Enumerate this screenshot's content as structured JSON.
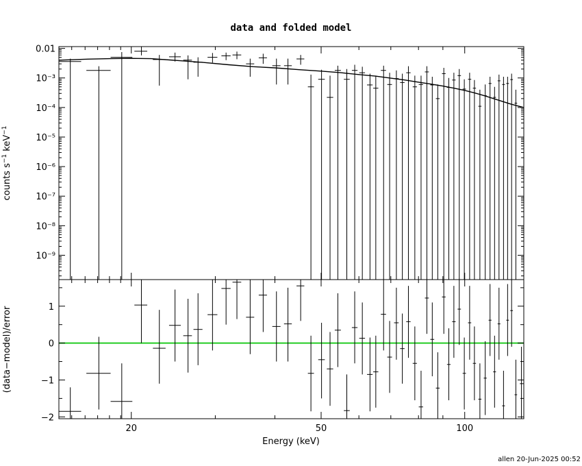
{
  "chart_data": {
    "title": "data and folded model",
    "footer": "allen 20-Jun-2025 00:52",
    "xlabel": "Energy (keV)",
    "xscale": "log",
    "xlim": [
      14.1,
      133.0
    ],
    "x_ticks": [
      {
        "value": 20,
        "label": "20"
      },
      {
        "value": 50,
        "label": "50"
      },
      {
        "value": 100,
        "label": "100"
      }
    ],
    "top_panel": {
      "type": "scatter",
      "ylabel": "counts s⁻¹ keV⁻¹",
      "yscale": "log",
      "ylim": [
        1.5e-10,
        0.0115
      ],
      "y_ticks": [
        {
          "value": 0.01,
          "label": "0.01"
        },
        {
          "value": 0.001,
          "label": "10⁻³"
        },
        {
          "value": 0.0001,
          "label": "10⁻⁴"
        },
        {
          "value": 1e-05,
          "label": "10⁻⁵"
        },
        {
          "value": 1e-06,
          "label": "10⁻⁶"
        },
        {
          "value": 1e-07,
          "label": "10⁻⁷"
        },
        {
          "value": 1e-08,
          "label": "10⁻⁸"
        },
        {
          "value": 1e-09,
          "label": "10⁻⁹"
        }
      ],
      "model_points": [
        [
          14.1,
          0.004
        ],
        [
          16,
          0.0043
        ],
        [
          18,
          0.0045
        ],
        [
          20,
          0.0046
        ],
        [
          22,
          0.0045
        ],
        [
          25,
          0.0039
        ],
        [
          28,
          0.0034
        ],
        [
          32,
          0.0028
        ],
        [
          36,
          0.0024
        ],
        [
          40,
          0.0022
        ],
        [
          45,
          0.0019
        ],
        [
          50,
          0.0017
        ],
        [
          55,
          0.0015
        ],
        [
          60,
          0.0013
        ],
        [
          65,
          0.00115
        ],
        [
          70,
          0.00098
        ],
        [
          75,
          0.00085
        ],
        [
          80,
          0.00072
        ],
        [
          85,
          0.00062
        ],
        [
          90,
          0.00053
        ],
        [
          95,
          0.00045
        ],
        [
          100,
          0.00038
        ],
        [
          105,
          0.00031
        ],
        [
          110,
          0.00025
        ],
        [
          115,
          0.0002
        ],
        [
          120,
          0.00016
        ],
        [
          125,
          0.00013
        ],
        [
          133,
          0.0001
        ]
      ],
      "data_points": [
        {
          "x": 14.9,
          "xlo": 14.1,
          "xhi": 15.7,
          "y": 0.0036,
          "ylo": 1.5e-10,
          "yhi": 0.0045
        },
        {
          "x": 17.1,
          "xlo": 16.1,
          "xhi": 18.1,
          "y": 0.0018,
          "ylo": 1.5e-10,
          "yhi": 0.0025
        },
        {
          "x": 19.1,
          "xlo": 18.1,
          "xhi": 20.1,
          "y": 0.005,
          "ylo": 1.5e-10,
          "yhi": 0.0075
        },
        {
          "x": 21.0,
          "xlo": 20.3,
          "xhi": 21.6,
          "y": 0.008,
          "ylo": 0.0058,
          "yhi": 0.0115
        },
        {
          "x": 22.9,
          "xlo": 22.2,
          "xhi": 23.6,
          "y": 0.0042,
          "ylo": 0.00055,
          "yhi": 0.006
        },
        {
          "x": 24.7,
          "xlo": 24.0,
          "xhi": 25.4,
          "y": 0.0052,
          "ylo": 0.0036,
          "yhi": 0.0072
        },
        {
          "x": 26.3,
          "xlo": 25.7,
          "xhi": 26.8,
          "y": 0.004,
          "ylo": 0.0009,
          "yhi": 0.0058
        },
        {
          "x": 27.6,
          "xlo": 27.0,
          "xhi": 28.2,
          "y": 0.0034,
          "ylo": 0.0011,
          "yhi": 0.005
        },
        {
          "x": 29.6,
          "xlo": 28.9,
          "xhi": 30.3,
          "y": 0.005,
          "ylo": 0.0033,
          "yhi": 0.007
        },
        {
          "x": 31.6,
          "xlo": 30.9,
          "xhi": 32.3,
          "y": 0.0056,
          "ylo": 0.004,
          "yhi": 0.0072
        },
        {
          "x": 33.3,
          "xlo": 32.6,
          "xhi": 34.0,
          "y": 0.006,
          "ylo": 0.0043,
          "yhi": 0.0078
        },
        {
          "x": 35.5,
          "xlo": 34.8,
          "xhi": 36.2,
          "y": 0.003,
          "ylo": 0.0011,
          "yhi": 0.0045
        },
        {
          "x": 37.8,
          "xlo": 37.0,
          "xhi": 38.5,
          "y": 0.0048,
          "ylo": 0.003,
          "yhi": 0.0066
        },
        {
          "x": 40.3,
          "xlo": 39.5,
          "xhi": 41.1,
          "y": 0.0026,
          "ylo": 0.0006,
          "yhi": 0.0045
        },
        {
          "x": 42.6,
          "xlo": 41.8,
          "xhi": 43.4,
          "y": 0.0026,
          "ylo": 0.0006,
          "yhi": 0.0045
        },
        {
          "x": 45.3,
          "xlo": 44.4,
          "xhi": 46.1,
          "y": 0.0044,
          "ylo": 0.0028,
          "yhi": 0.006
        },
        {
          "x": 47.6,
          "xlo": 46.9,
          "xhi": 48.3,
          "y": 0.0005,
          "ylo": 1.5e-10,
          "yhi": 0.0013
        },
        {
          "x": 50.1,
          "xlo": 49.3,
          "xhi": 50.9,
          "y": 0.0009,
          "ylo": 1.5e-10,
          "yhi": 0.0019
        },
        {
          "x": 52.2,
          "xlo": 51.4,
          "xhi": 53.0,
          "y": 0.00022,
          "ylo": 1.5e-10,
          "yhi": 0.0012
        },
        {
          "x": 54.2,
          "xlo": 53.4,
          "xhi": 55.0,
          "y": 0.0018,
          "ylo": 1.5e-10,
          "yhi": 0.0026
        },
        {
          "x": 56.6,
          "xlo": 55.8,
          "xhi": 57.4,
          "y": 0.0009,
          "ylo": 1.5e-10,
          "yhi": 0.002
        },
        {
          "x": 58.8,
          "xlo": 58.0,
          "xhi": 59.6,
          "y": 0.0018,
          "ylo": 1.5e-10,
          "yhi": 0.0028
        },
        {
          "x": 61.0,
          "xlo": 60.1,
          "xhi": 61.8,
          "y": 0.0015,
          "ylo": 1.5e-10,
          "yhi": 0.0024
        },
        {
          "x": 63.3,
          "xlo": 62.4,
          "xhi": 64.1,
          "y": 0.00058,
          "ylo": 1.5e-10,
          "yhi": 0.0014
        },
        {
          "x": 65.1,
          "xlo": 64.3,
          "xhi": 65.9,
          "y": 0.00045,
          "ylo": 1.5e-10,
          "yhi": 0.0012
        },
        {
          "x": 67.6,
          "xlo": 66.7,
          "xhi": 68.4,
          "y": 0.0018,
          "ylo": 1.5e-10,
          "yhi": 0.0026
        },
        {
          "x": 69.6,
          "xlo": 68.8,
          "xhi": 70.4,
          "y": 0.0006,
          "ylo": 1.5e-10,
          "yhi": 0.0015
        },
        {
          "x": 71.9,
          "xlo": 71.1,
          "xhi": 72.7,
          "y": 0.00095,
          "ylo": 1.5e-10,
          "yhi": 0.0018
        },
        {
          "x": 74.0,
          "xlo": 73.2,
          "xhi": 74.8,
          "y": 0.0007,
          "ylo": 1.5e-10,
          "yhi": 0.0014
        },
        {
          "x": 76.2,
          "xlo": 75.4,
          "xhi": 77.0,
          "y": 0.0015,
          "ylo": 1.5e-10,
          "yhi": 0.0025
        },
        {
          "x": 78.6,
          "xlo": 77.8,
          "xhi": 79.4,
          "y": 0.0005,
          "ylo": 1.5e-10,
          "yhi": 0.0012
        },
        {
          "x": 81.0,
          "xlo": 80.1,
          "xhi": 81.8,
          "y": 0.0006,
          "ylo": 1.5e-10,
          "yhi": 0.0012
        },
        {
          "x": 83.3,
          "xlo": 82.5,
          "xhi": 84.1,
          "y": 0.0016,
          "ylo": 1.5e-10,
          "yhi": 0.0025
        },
        {
          "x": 85.5,
          "xlo": 84.7,
          "xhi": 86.3,
          "y": 0.00058,
          "ylo": 1.5e-10,
          "yhi": 0.0011
        },
        {
          "x": 87.8,
          "xlo": 87.0,
          "xhi": 88.6,
          "y": 0.0002,
          "ylo": 1.5e-10,
          "yhi": 0.0006
        },
        {
          "x": 90.4,
          "xlo": 89.6,
          "xhi": 91.2,
          "y": 0.0014,
          "ylo": 1.5e-10,
          "yhi": 0.0022
        },
        {
          "x": 92.6,
          "xlo": 91.8,
          "xhi": 93.4,
          "y": 0.00048,
          "ylo": 1.5e-10,
          "yhi": 0.001
        },
        {
          "x": 94.9,
          "xlo": 94.1,
          "xhi": 95.7,
          "y": 0.00085,
          "ylo": 1.5e-10,
          "yhi": 0.0015
        },
        {
          "x": 97.4,
          "xlo": 96.6,
          "xhi": 98.2,
          "y": 0.0012,
          "ylo": 1.5e-10,
          "yhi": 0.002
        },
        {
          "x": 99.8,
          "xlo": 99.0,
          "xhi": 100.6,
          "y": 0.00042,
          "ylo": 1.5e-10,
          "yhi": 0.0009
        },
        {
          "x": 102.4,
          "xlo": 101.6,
          "xhi": 103.2,
          "y": 0.0009,
          "ylo": 1.5e-10,
          "yhi": 0.0015
        },
        {
          "x": 104.8,
          "xlo": 104.0,
          "xhi": 105.6,
          "y": 0.00045,
          "ylo": 1.5e-10,
          "yhi": 0.00085
        },
        {
          "x": 107.6,
          "xlo": 106.8,
          "xhi": 108.4,
          "y": 0.00011,
          "ylo": 1.5e-10,
          "yhi": 0.0004
        },
        {
          "x": 110.4,
          "xlo": 109.6,
          "xhi": 111.2,
          "y": 0.00025,
          "ylo": 1.5e-10,
          "yhi": 0.0006
        },
        {
          "x": 113.0,
          "xlo": 112.2,
          "xhi": 113.8,
          "y": 0.00065,
          "ylo": 1.5e-10,
          "yhi": 0.0011
        },
        {
          "x": 115.5,
          "xlo": 114.7,
          "xhi": 116.3,
          "y": 0.00022,
          "ylo": 1.5e-10,
          "yhi": 0.0005
        },
        {
          "x": 118.0,
          "xlo": 117.2,
          "xhi": 118.8,
          "y": 0.0008,
          "ylo": 1.5e-10,
          "yhi": 0.0013
        },
        {
          "x": 120.6,
          "xlo": 119.8,
          "xhi": 121.4,
          "y": 0.0006,
          "ylo": 1.5e-10,
          "yhi": 0.0011
        },
        {
          "x": 123.0,
          "xlo": 122.2,
          "xhi": 123.8,
          "y": 0.00065,
          "ylo": 1.5e-10,
          "yhi": 0.0011
        },
        {
          "x": 125.4,
          "xlo": 124.6,
          "xhi": 126.2,
          "y": 0.00088,
          "ylo": 1.5e-10,
          "yhi": 0.0014
        },
        {
          "x": 128.0,
          "xlo": 127.2,
          "xhi": 128.8,
          "y": 0.00014,
          "ylo": 1.5e-10,
          "yhi": 0.0004
        }
      ]
    },
    "bottom_panel": {
      "type": "scatter",
      "ylabel": "(data−model)/error",
      "ylim": [
        -2.05,
        1.72
      ],
      "y_ticks": [
        {
          "value": -2,
          "label": "−2"
        },
        {
          "value": -1,
          "label": "−1"
        },
        {
          "value": 0,
          "label": "0"
        },
        {
          "value": 1,
          "label": "1"
        }
      ],
      "zero_line_color": "#22cc22",
      "residuals": [
        {
          "x": 14.9,
          "xlo": 14.1,
          "xhi": 15.7,
          "y": -1.85,
          "ylo": -2.05,
          "yhi": -1.2
        },
        {
          "x": 17.1,
          "xlo": 16.1,
          "xhi": 18.1,
          "y": -0.82,
          "ylo": -1.8,
          "yhi": 0.17
        },
        {
          "x": 19.1,
          "xlo": 18.1,
          "xhi": 20.1,
          "y": -1.58,
          "ylo": -2.05,
          "yhi": -0.55
        },
        {
          "x": 21.0,
          "xlo": 20.3,
          "xhi": 21.6,
          "y": 1.03,
          "ylo": 0.0,
          "yhi": 1.72
        },
        {
          "x": 22.9,
          "xlo": 22.2,
          "xhi": 23.6,
          "y": -0.14,
          "ylo": -1.1,
          "yhi": 0.9
        },
        {
          "x": 24.7,
          "xlo": 24.0,
          "xhi": 25.4,
          "y": 0.48,
          "ylo": -0.5,
          "yhi": 1.45
        },
        {
          "x": 26.3,
          "xlo": 25.7,
          "xhi": 26.8,
          "y": 0.2,
          "ylo": -0.8,
          "yhi": 1.2
        },
        {
          "x": 27.6,
          "xlo": 27.0,
          "xhi": 28.2,
          "y": 0.37,
          "ylo": -0.6,
          "yhi": 1.35
        },
        {
          "x": 29.6,
          "xlo": 28.9,
          "xhi": 30.3,
          "y": 0.77,
          "ylo": -0.2,
          "yhi": 1.72
        },
        {
          "x": 31.6,
          "xlo": 30.9,
          "xhi": 32.3,
          "y": 1.48,
          "ylo": 0.5,
          "yhi": 1.72
        },
        {
          "x": 33.3,
          "xlo": 32.6,
          "xhi": 34.0,
          "y": 1.65,
          "ylo": 0.65,
          "yhi": 1.72
        },
        {
          "x": 35.5,
          "xlo": 34.8,
          "xhi": 36.2,
          "y": 0.7,
          "ylo": -0.3,
          "yhi": 1.72
        },
        {
          "x": 37.8,
          "xlo": 37.0,
          "xhi": 38.5,
          "y": 1.3,
          "ylo": 0.3,
          "yhi": 1.72
        },
        {
          "x": 40.3,
          "xlo": 39.5,
          "xhi": 41.1,
          "y": 0.45,
          "ylo": -0.5,
          "yhi": 1.4
        },
        {
          "x": 42.6,
          "xlo": 41.8,
          "xhi": 43.4,
          "y": 0.52,
          "ylo": -0.5,
          "yhi": 1.5
        },
        {
          "x": 45.3,
          "xlo": 44.4,
          "xhi": 46.1,
          "y": 1.55,
          "ylo": 0.6,
          "yhi": 1.72
        },
        {
          "x": 47.6,
          "xlo": 46.9,
          "xhi": 48.3,
          "y": -0.82,
          "ylo": -1.85,
          "yhi": 0.2
        },
        {
          "x": 50.1,
          "xlo": 49.3,
          "xhi": 50.9,
          "y": -0.45,
          "ylo": -1.5,
          "yhi": 0.55
        },
        {
          "x": 52.2,
          "xlo": 51.4,
          "xhi": 53.0,
          "y": -0.7,
          "ylo": -1.7,
          "yhi": 0.3
        },
        {
          "x": 54.2,
          "xlo": 53.4,
          "xhi": 55.0,
          "y": 0.35,
          "ylo": -0.65,
          "yhi": 1.35
        },
        {
          "x": 56.6,
          "xlo": 55.8,
          "xhi": 57.4,
          "y": -1.83,
          "ylo": -2.05,
          "yhi": -0.85
        },
        {
          "x": 58.8,
          "xlo": 58.0,
          "xhi": 59.6,
          "y": 0.42,
          "ylo": -0.55,
          "yhi": 1.4
        },
        {
          "x": 61.0,
          "xlo": 60.1,
          "xhi": 61.8,
          "y": 0.13,
          "ylo": -0.85,
          "yhi": 1.1
        },
        {
          "x": 63.3,
          "xlo": 62.4,
          "xhi": 64.1,
          "y": -0.85,
          "ylo": -1.85,
          "yhi": 0.15
        },
        {
          "x": 65.1,
          "xlo": 64.3,
          "xhi": 65.9,
          "y": -0.78,
          "ylo": -1.75,
          "yhi": 0.2
        },
        {
          "x": 67.6,
          "xlo": 66.7,
          "xhi": 68.4,
          "y": 0.78,
          "ylo": -0.2,
          "yhi": 1.72
        },
        {
          "x": 69.6,
          "xlo": 68.8,
          "xhi": 70.4,
          "y": -0.38,
          "ylo": -1.35,
          "yhi": 0.6
        },
        {
          "x": 71.9,
          "xlo": 71.1,
          "xhi": 72.7,
          "y": 0.55,
          "ylo": -0.45,
          "yhi": 1.5
        },
        {
          "x": 74.0,
          "xlo": 73.2,
          "xhi": 74.8,
          "y": -0.15,
          "ylo": -1.1,
          "yhi": 0.8
        },
        {
          "x": 76.2,
          "xlo": 75.4,
          "xhi": 77.0,
          "y": 0.58,
          "ylo": -0.4,
          "yhi": 1.55
        },
        {
          "x": 78.6,
          "xlo": 77.8,
          "xhi": 79.4,
          "y": -0.55,
          "ylo": -1.55,
          "yhi": 0.45
        },
        {
          "x": 81.0,
          "xlo": 80.1,
          "xhi": 81.8,
          "y": -1.73,
          "ylo": -2.05,
          "yhi": -0.75
        },
        {
          "x": 83.3,
          "xlo": 82.5,
          "xhi": 84.1,
          "y": 1.22,
          "ylo": 0.25,
          "yhi": 1.72
        },
        {
          "x": 85.5,
          "xlo": 84.7,
          "xhi": 86.3,
          "y": 0.1,
          "ylo": -0.9,
          "yhi": 1.1
        },
        {
          "x": 87.8,
          "xlo": 87.0,
          "xhi": 88.6,
          "y": -1.22,
          "ylo": -2.05,
          "yhi": -0.25
        },
        {
          "x": 90.4,
          "xlo": 89.6,
          "xhi": 91.2,
          "y": 1.25,
          "ylo": 0.25,
          "yhi": 1.72
        },
        {
          "x": 92.6,
          "xlo": 91.8,
          "xhi": 93.4,
          "y": -0.58,
          "ylo": -1.55,
          "yhi": 0.4
        },
        {
          "x": 94.9,
          "xlo": 94.1,
          "xhi": 95.7,
          "y": 0.58,
          "ylo": -0.4,
          "yhi": 1.55
        },
        {
          "x": 97.4,
          "xlo": 96.6,
          "xhi": 98.2,
          "y": 0.92,
          "ylo": -0.05,
          "yhi": 1.72
        },
        {
          "x": 99.8,
          "xlo": 99.0,
          "xhi": 100.6,
          "y": -0.82,
          "ylo": -1.8,
          "yhi": 0.15
        },
        {
          "x": 102.4,
          "xlo": 101.6,
          "xhi": 103.2,
          "y": 0.55,
          "ylo": -0.45,
          "yhi": 1.55
        },
        {
          "x": 104.8,
          "xlo": 104.0,
          "xhi": 105.6,
          "y": -0.55,
          "ylo": -1.55,
          "yhi": 0.45
        },
        {
          "x": 107.6,
          "xlo": 106.8,
          "xhi": 108.4,
          "y": -1.52,
          "ylo": -2.05,
          "yhi": -0.55
        },
        {
          "x": 110.4,
          "xlo": 109.6,
          "xhi": 111.2,
          "y": -0.95,
          "ylo": -1.95,
          "yhi": 0.05
        },
        {
          "x": 113.0,
          "xlo": 112.2,
          "xhi": 113.8,
          "y": 0.62,
          "ylo": -0.35,
          "yhi": 1.6
        },
        {
          "x": 115.5,
          "xlo": 114.7,
          "xhi": 116.3,
          "y": -0.78,
          "ylo": -1.75,
          "yhi": 0.2
        },
        {
          "x": 118.0,
          "xlo": 117.2,
          "xhi": 118.8,
          "y": 0.52,
          "ylo": -0.45,
          "yhi": 1.5
        },
        {
          "x": 120.6,
          "xlo": 119.8,
          "xhi": 121.4,
          "y": -1.7,
          "ylo": -2.05,
          "yhi": -0.75
        },
        {
          "x": 123.0,
          "xlo": 122.2,
          "xhi": 123.8,
          "y": 0.62,
          "ylo": -0.35,
          "yhi": 1.6
        },
        {
          "x": 125.4,
          "xlo": 124.6,
          "xhi": 126.2,
          "y": 0.88,
          "ylo": -0.1,
          "yhi": 1.72
        },
        {
          "x": 128.0,
          "xlo": 127.2,
          "xhi": 128.8,
          "y": -1.4,
          "ylo": -2.05,
          "yhi": -0.45
        },
        {
          "x": 131.5,
          "xlo": 130.5,
          "xhi": 133.0,
          "y": -1.1,
          "ylo": -2.05,
          "yhi": -0.1
        }
      ]
    }
  }
}
